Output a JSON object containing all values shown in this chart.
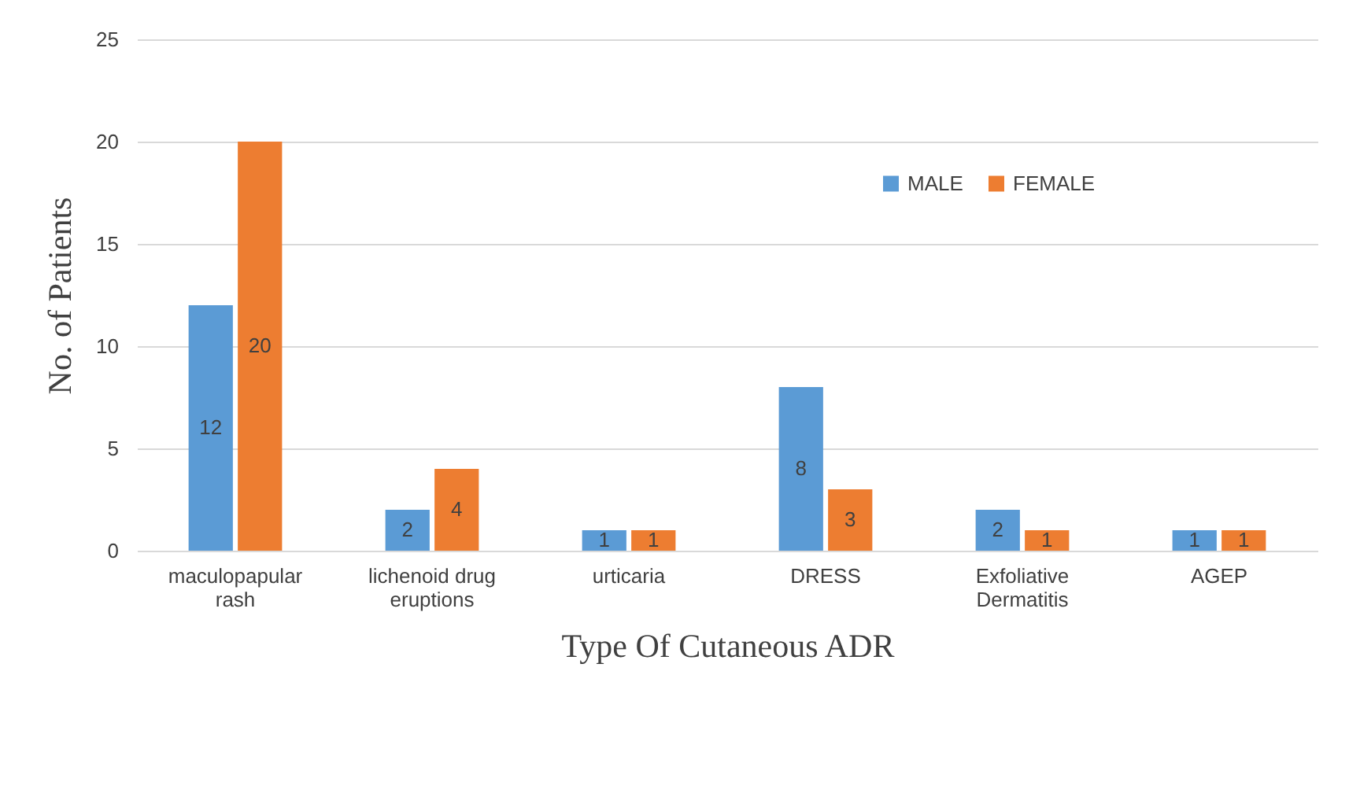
{
  "chart_data": {
    "type": "bar",
    "xlabel": "Type Of Cutaneous ADR",
    "ylabel": "No. of Patients",
    "categories": [
      "maculopapular rash",
      "lichenoid drug eruptions",
      "urticaria",
      "DRESS",
      "Exfoliative Dermatitis",
      "AGEP"
    ],
    "series": [
      {
        "name": "MALE",
        "color": "#5b9bd5",
        "values": [
          12,
          2,
          1,
          8,
          2,
          1
        ]
      },
      {
        "name": "FEMALE",
        "color": "#ed7d31",
        "values": [
          20,
          4,
          1,
          3,
          1,
          1
        ]
      }
    ],
    "ylim": [
      0,
      25
    ],
    "yticks": [
      0,
      5,
      10,
      15,
      20,
      25
    ],
    "grid": "y",
    "legend": "top right",
    "data_labels": true
  }
}
